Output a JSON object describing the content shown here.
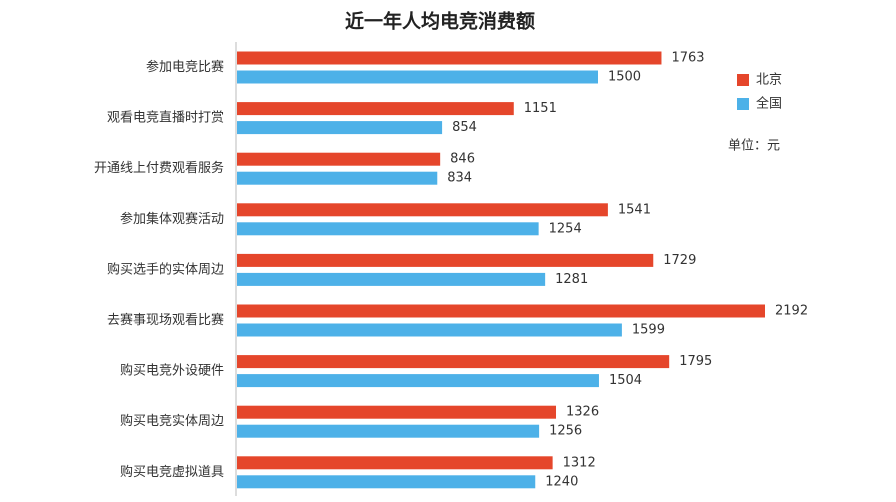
{
  "chart_data": {
    "type": "hbar",
    "title": "近一年人均电竞消费额",
    "categories": [
      "参加电竞比赛",
      "观看电竞直播时打赏",
      "开通线上付费观看服务",
      "参加集体观赛活动",
      "购买选手的实体周边",
      "去赛事现场观看比赛",
      "购买电竞外设硬件",
      "购买电竞实体周边",
      "购买电竞虚拟道具"
    ],
    "series": [
      {
        "name": "北京",
        "color": "#e5462b",
        "values": [
          1763,
          1151,
          846,
          1541,
          1729,
          2192,
          1795,
          1326,
          1312
        ]
      },
      {
        "name": "全国",
        "color": "#4db1e8",
        "values": [
          1500,
          854,
          834,
          1254,
          1281,
          1599,
          1504,
          1256,
          1240
        ]
      }
    ],
    "unit_note": "单位：元"
  }
}
